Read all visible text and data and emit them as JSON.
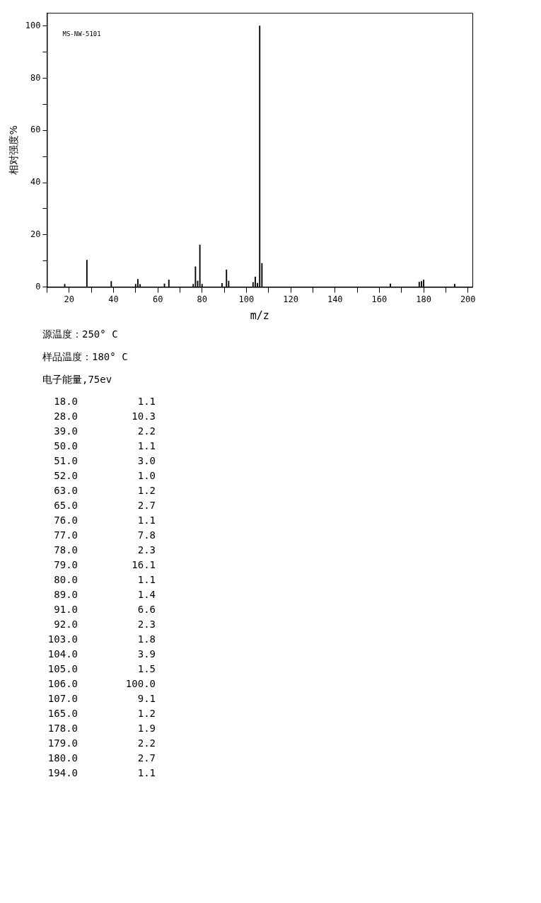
{
  "chart_data": {
    "type": "bar",
    "xlabel": "m/z",
    "ylabel": "相对强度%",
    "x": [
      18,
      28,
      39,
      50,
      51,
      52,
      63,
      65,
      76,
      77,
      78,
      79,
      80,
      89,
      91,
      92,
      103,
      104,
      105,
      106,
      107,
      165,
      178,
      179,
      180,
      194
    ],
    "values": [
      1.1,
      10.3,
      2.2,
      1.1,
      3.0,
      1.0,
      1.2,
      2.7,
      1.1,
      7.8,
      2.3,
      16.1,
      1.1,
      1.4,
      6.6,
      2.3,
      1.8,
      3.9,
      1.5,
      100.0,
      9.1,
      1.2,
      1.9,
      2.2,
      2.7,
      1.1
    ],
    "color": "#000000",
    "xlim": [
      10,
      202
    ],
    "xticks": [
      {
        "value": 10,
        "label": null
      },
      20,
      {
        "value": 30,
        "label": null
      },
      40,
      {
        "value": 50,
        "label": null
      },
      60,
      {
        "value": 70,
        "label": null
      },
      80,
      {
        "value": 90,
        "label": null
      },
      100,
      {
        "value": 110,
        "label": null
      },
      120,
      {
        "value": 130,
        "label": null
      },
      140,
      {
        "value": 150,
        "label": null
      },
      160,
      {
        "value": 170,
        "label": null
      },
      180,
      {
        "value": 190,
        "label": null
      },
      200
    ],
    "ylim": [
      0,
      105
    ],
    "yticks": [
      0,
      {
        "value": 10,
        "label": null
      },
      20,
      {
        "value": 30,
        "label": null
      },
      40,
      {
        "value": 50,
        "label": null
      },
      60,
      {
        "value": 70,
        "label": null
      },
      80,
      {
        "value": 90,
        "label": null
      },
      100
    ],
    "grid": false,
    "legend": false,
    "annotations": [
      "MS-NW-5101",
      "源温度：250° C",
      "样品温度：180° C",
      "电子能量,75ev",
      "18.0 1.1",
      "28.0 10.3",
      "39.0 2.2",
      "50.0 1.1",
      "51.0 3.0",
      "52.0 1.0",
      "63.0 1.2",
      "65.0 2.7",
      "76.0 1.1",
      "77.0 7.8",
      "78.0 2.3",
      "79.0 16.1",
      "80.0 1.1",
      "89.0 1.4",
      "91.0 6.6",
      "92.0 2.3",
      "103.0 1.8",
      "104.0 3.9",
      "105.0 1.5",
      "106.0 100.0",
      "107.0 9.1",
      "165.0 1.2",
      "178.0 1.9",
      "179.0 2.2",
      "180.0 2.7",
      "194.0 1.1"
    ]
  }
}
